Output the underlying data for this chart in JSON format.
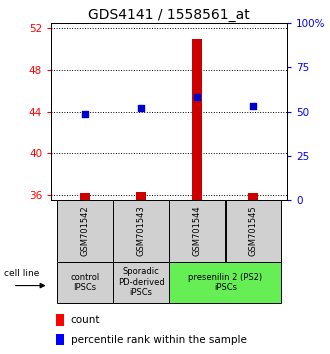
{
  "title": "GDS4141 / 1558561_at",
  "samples": [
    "GSM701542",
    "GSM701543",
    "GSM701544",
    "GSM701545"
  ],
  "count_values": [
    36.2,
    36.3,
    51.0,
    36.15
  ],
  "count_base": 35.5,
  "percentile_values": [
    43.8,
    44.35,
    45.4,
    44.55
  ],
  "ylim_left": [
    35.5,
    52.5
  ],
  "ylim_right": [
    0,
    100
  ],
  "yticks_left": [
    36,
    40,
    44,
    48,
    52
  ],
  "yticks_right": [
    0,
    25,
    50,
    75,
    100
  ],
  "ytick_labels_right": [
    "0",
    "25",
    "50",
    "75",
    "100%"
  ],
  "bar_color": "#cc0000",
  "dot_color": "#0000cc",
  "bar_width": 0.18,
  "group_colors": [
    "#d0d0d0",
    "#d0d0d0",
    "#66ee55"
  ],
  "cell_line_label": "cell line",
  "legend_count": "count",
  "legend_percentile": "percentile rank within the sample",
  "title_fontsize": 10,
  "tick_fontsize": 7.5,
  "sample_fontsize": 6,
  "group_fontsize": 6,
  "legend_fontsize": 7.5
}
